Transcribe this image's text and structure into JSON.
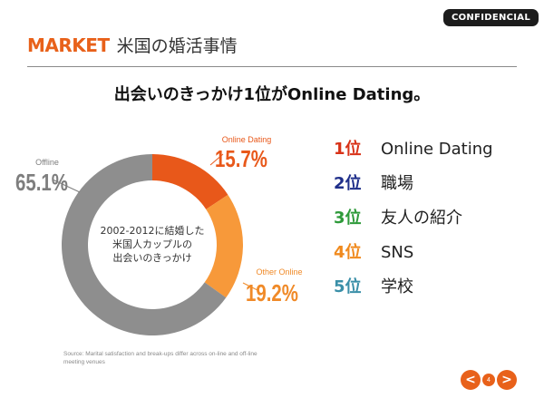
{
  "badge": "CONFIDENCIAL",
  "header": {
    "market": "MARKET",
    "title": "米国の婚活事情"
  },
  "headline": "出会いのきっかけ1位がOnline Dating。",
  "chart_data": {
    "type": "pie",
    "variant": "donut",
    "center_text": [
      "2002-2012に結婚した",
      "米国人カップルの",
      "出会いのきっかけ"
    ],
    "slices": [
      {
        "label": "Online Dating",
        "value": 15.7,
        "value_label": "15.7%",
        "color": "#e8581a",
        "label_color": "#e8581a"
      },
      {
        "label": "Other Online",
        "value": 19.2,
        "value_label": "19.2%",
        "color": "#f7993a",
        "label_color": "#f08a28"
      },
      {
        "label": "Offline",
        "value": 65.1,
        "value_label": "65.1%",
        "color": "#8e8e8e",
        "label_color": "#7e7e7e"
      }
    ]
  },
  "ranking": [
    {
      "rank": "1位",
      "name": "Online Dating",
      "color": "#d83218"
    },
    {
      "rank": "2位",
      "name": "職場",
      "color": "#1f2f8a"
    },
    {
      "rank": "3位",
      "name": "友人の紹介",
      "color": "#2e9a3a"
    },
    {
      "rank": "4位",
      "name": "SNS",
      "color": "#f08a1e"
    },
    {
      "rank": "5位",
      "name": "学校",
      "color": "#3a8fa8"
    }
  ],
  "source": "Source: Marital satisfaction and break-ups differ across on-line and off-line meeting venues",
  "nav": {
    "prev": "<",
    "page": "4",
    "next": ">"
  }
}
